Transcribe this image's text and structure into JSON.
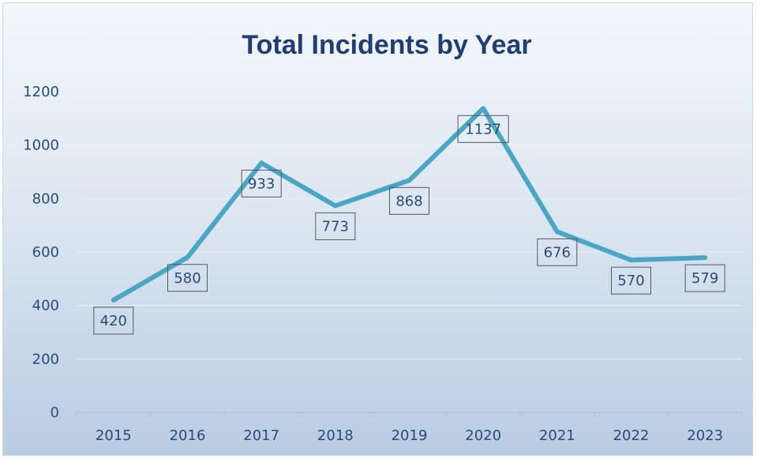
{
  "chart_data": {
    "type": "line",
    "title": "Total Incidents by Year",
    "xlabel": "",
    "ylabel": "",
    "categories": [
      "2015",
      "2016",
      "2017",
      "2018",
      "2019",
      "2020",
      "2021",
      "2022",
      "2023"
    ],
    "series": [
      {
        "values": [
          420,
          580,
          933,
          773,
          868,
          1137,
          676,
          570,
          579
        ],
        "color": "#4aa6c4"
      }
    ],
    "data_labels": [
      "420",
      "580",
      "933",
      "773",
      "868",
      "1137",
      "676",
      "570",
      "579"
    ],
    "ylim": [
      0,
      1200
    ],
    "yticks": [
      "0",
      "200",
      "400",
      "600",
      "800",
      "1000",
      "1200"
    ],
    "grid": true,
    "legend": "none"
  }
}
